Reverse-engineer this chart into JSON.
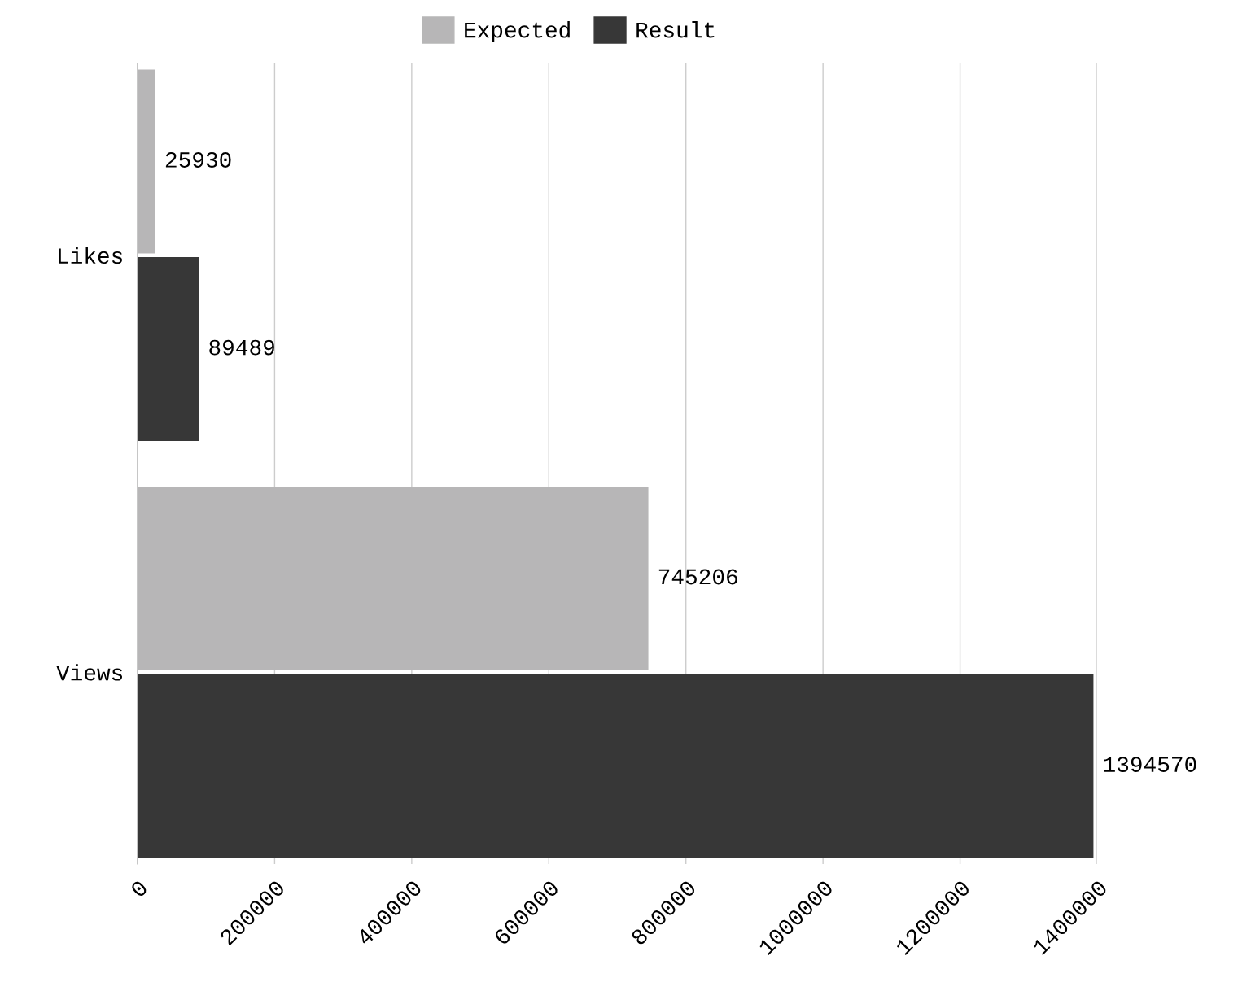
{
  "chart_data": {
    "type": "bar",
    "orientation": "horizontal",
    "categories": [
      "Likes",
      "Views"
    ],
    "series": [
      {
        "name": "Expected",
        "color": "#b7b6b7",
        "values": [
          25930,
          745206
        ]
      },
      {
        "name": "Result",
        "color": "#373737",
        "values": [
          89489,
          1394570
        ]
      }
    ],
    "xlim": [
      0,
      1400000
    ],
    "xticks": [
      0,
      200000,
      400000,
      600000,
      800000,
      1000000,
      1200000,
      1400000
    ],
    "grid": "x",
    "legend": "top",
    "data_labels": true
  }
}
